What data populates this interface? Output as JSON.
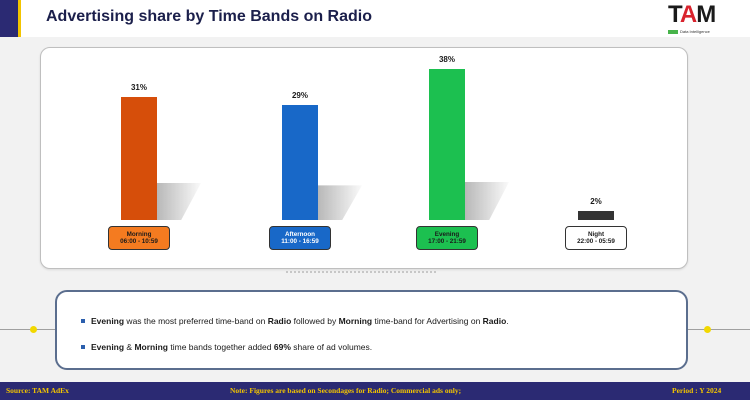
{
  "title": "Advertising share by Time Bands on Radio",
  "logo": {
    "text_t": "T",
    "text_a": "A",
    "text_m": "M",
    "tagline": "Data Intelligence"
  },
  "chart_data": {
    "type": "bar",
    "categories": [
      "Morning",
      "Afternoon",
      "Evening",
      "Night"
    ],
    "ranges": [
      "06:00 - 10:59",
      "11:00 - 16:59",
      "17:00 - 21:59",
      "22:00 - 05:59"
    ],
    "values": [
      31,
      29,
      38,
      2
    ],
    "value_labels": [
      "31%",
      "29%",
      "38%",
      "2%"
    ],
    "colors": [
      "#d64e0a",
      "#1868c8",
      "#1cc050",
      "#333333"
    ],
    "box_colors": [
      "#f47b20",
      "#1868c8",
      "#1cc050",
      "#ffffff"
    ],
    "box_text_colors": [
      "#1a1a1a",
      "#ffffff",
      "#1a1a1a",
      "#1a1a1a"
    ],
    "ylim": [
      0,
      38
    ],
    "legend": "none",
    "grid": false
  },
  "notes": [
    {
      "parts": [
        {
          "t": "Evening",
          "b": true
        },
        {
          "t": " was the most preferred time-band on ",
          "b": false
        },
        {
          "t": "Radio",
          "b": true
        },
        {
          "t": " followed by ",
          "b": false
        },
        {
          "t": "Morning",
          "b": true
        },
        {
          "t": " time-band for Advertising on ",
          "b": false
        },
        {
          "t": "Radio",
          "b": true
        },
        {
          "t": ".",
          "b": false
        }
      ]
    },
    {
      "parts": [
        {
          "t": "Evening",
          "b": true
        },
        {
          "t": " & ",
          "b": false
        },
        {
          "t": "Morning",
          "b": true
        },
        {
          "t": " time bands together added ",
          "b": false
        },
        {
          "t": "69%",
          "b": true
        },
        {
          "t": " share of ad volumes.",
          "b": false
        }
      ]
    }
  ],
  "footer": {
    "source": "Source: TAM AdEx",
    "note": "Note: Figures are based on Secondages for Radio; Commercial ads only;",
    "period": "Period : Y 2024"
  }
}
